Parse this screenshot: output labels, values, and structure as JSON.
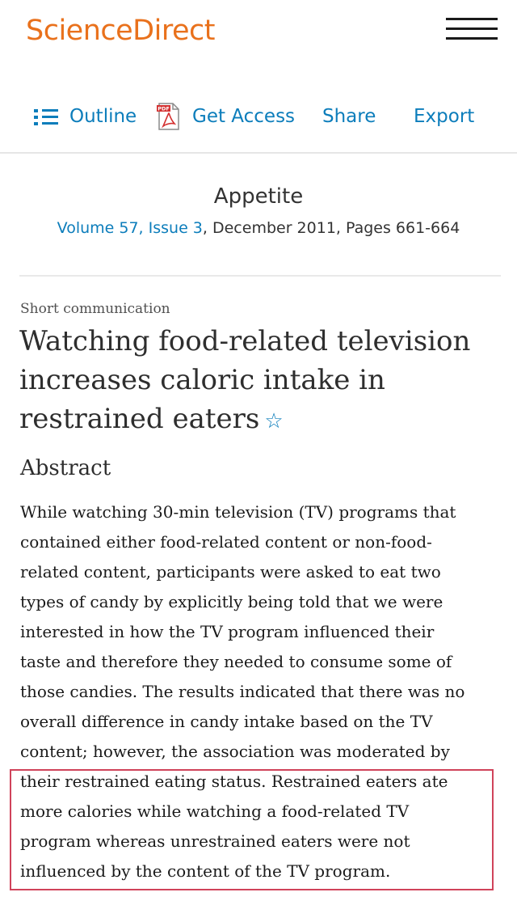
{
  "header": {
    "logo": "ScienceDirect",
    "menu_icon": "hamburger-menu-icon"
  },
  "toolbar": {
    "outline_label": "Outline",
    "get_access_label": "Get Access",
    "share_label": "Share",
    "export_label": "Export",
    "accent_color": "#0c7dbb"
  },
  "journal": {
    "title": "Appetite",
    "volume_issue": "Volume 57, Issue 3",
    "date_pages": ", December 2011, Pages 661-664"
  },
  "article": {
    "type": "Short communication",
    "title": "Watching food-related television increases caloric intake in restrained eaters",
    "star": "☆"
  },
  "abstract": {
    "heading": "Abstract",
    "lines": [
      "While watching 30-min television (TV) programs that",
      "contained either food-related content or non-food-",
      "related content, participants were asked to eat two",
      "types of candy by explicitly being told that we were",
      "interested in how the TV program influenced their",
      "taste and therefore they needed to consume some of",
      "those candies. The results indicated that there was no",
      "overall difference in candy intake based on the TV",
      "content; however, the association was moderated by",
      "their restrained eating status. Restrained eaters ate",
      "more calories while watching a food-related TV",
      "program whereas unrestrained eaters were not",
      "influenced by the content of the TV program."
    ]
  },
  "annotation": {
    "highlight_color": "#d0435a"
  }
}
